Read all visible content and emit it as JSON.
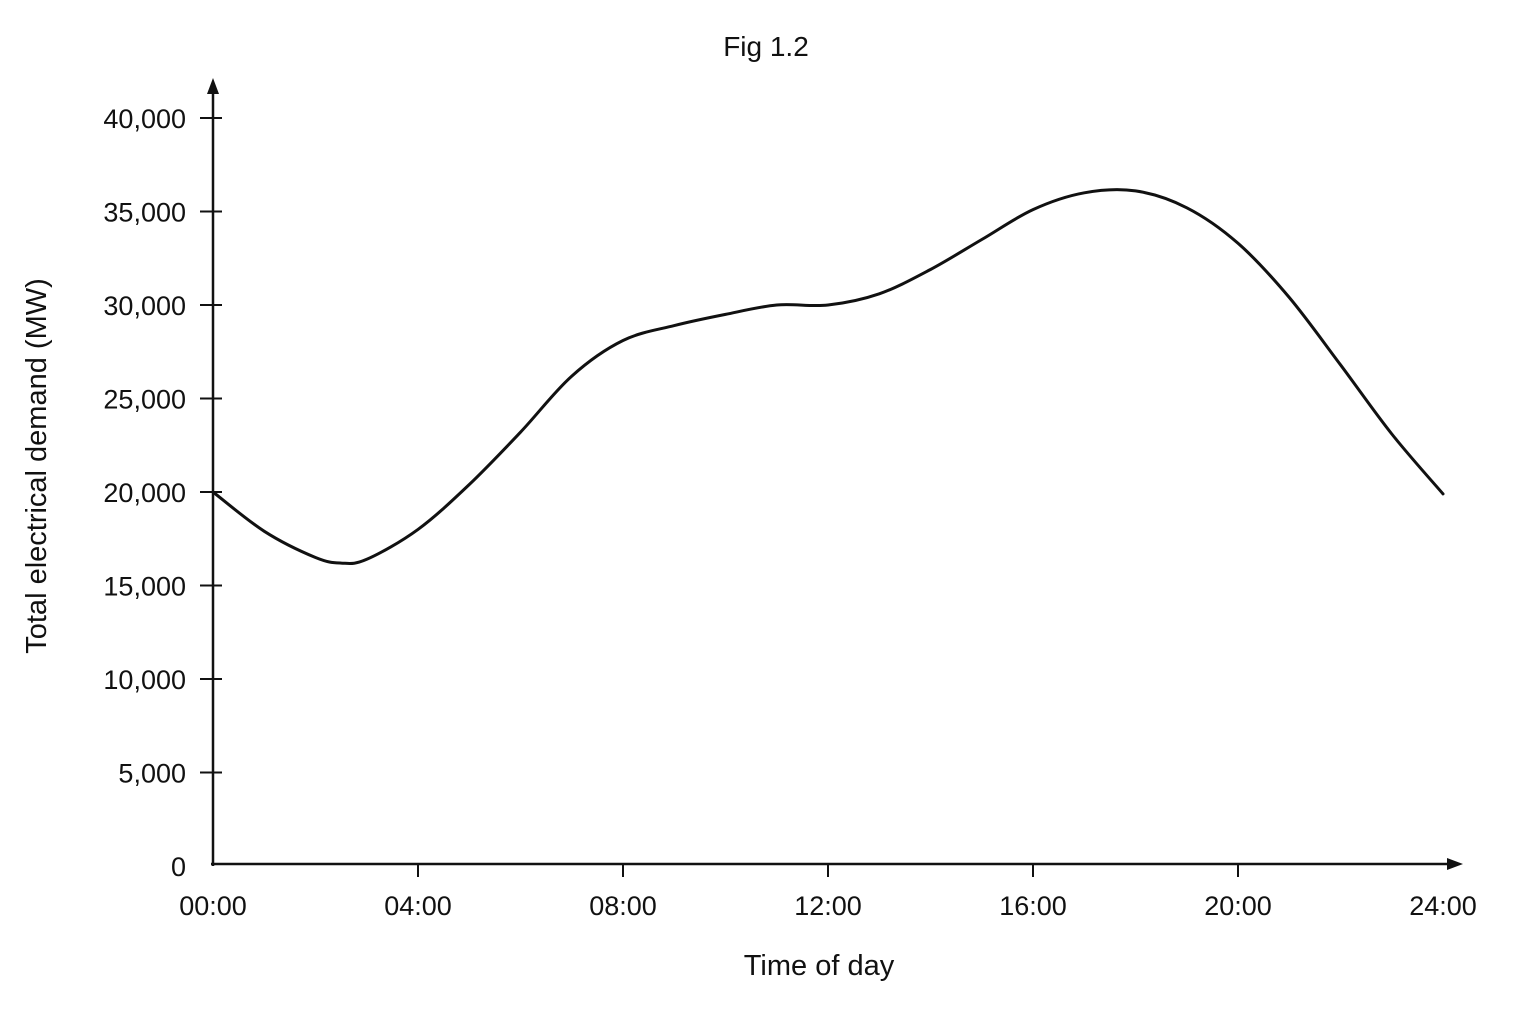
{
  "chart_data": {
    "type": "line",
    "title": "Fig 1.2",
    "xlabel": "Time of day",
    "ylabel": "Total electrical demand (MW)",
    "x_tick_labels": [
      "00:00",
      "04:00",
      "08:00",
      "12:00",
      "16:00",
      "20:00",
      "24:00"
    ],
    "y_tick_labels": [
      "0",
      "5,000",
      "10,000",
      "15,000",
      "20,000",
      "25,000",
      "30,000",
      "35,000",
      "40,000"
    ],
    "xlim": [
      0,
      24
    ],
    "ylim": [
      0,
      40000
    ],
    "grid": false,
    "legend": "none",
    "series": [
      {
        "x": [
          0,
          1,
          2,
          2.5,
          3,
          4,
          5,
          6,
          7,
          8,
          9,
          10,
          11,
          12,
          13,
          14,
          15,
          16,
          17,
          18,
          19,
          20,
          21,
          22,
          23,
          24
        ],
        "y": [
          20000,
          17900,
          16500,
          16200,
          16400,
          18000,
          20400,
          23200,
          26200,
          28100,
          28900,
          29500,
          30000,
          30000,
          30600,
          31900,
          33500,
          35100,
          36000,
          36100,
          35200,
          33300,
          30400,
          26800,
          23100,
          19900
        ],
        "color": "#111111"
      }
    ]
  }
}
